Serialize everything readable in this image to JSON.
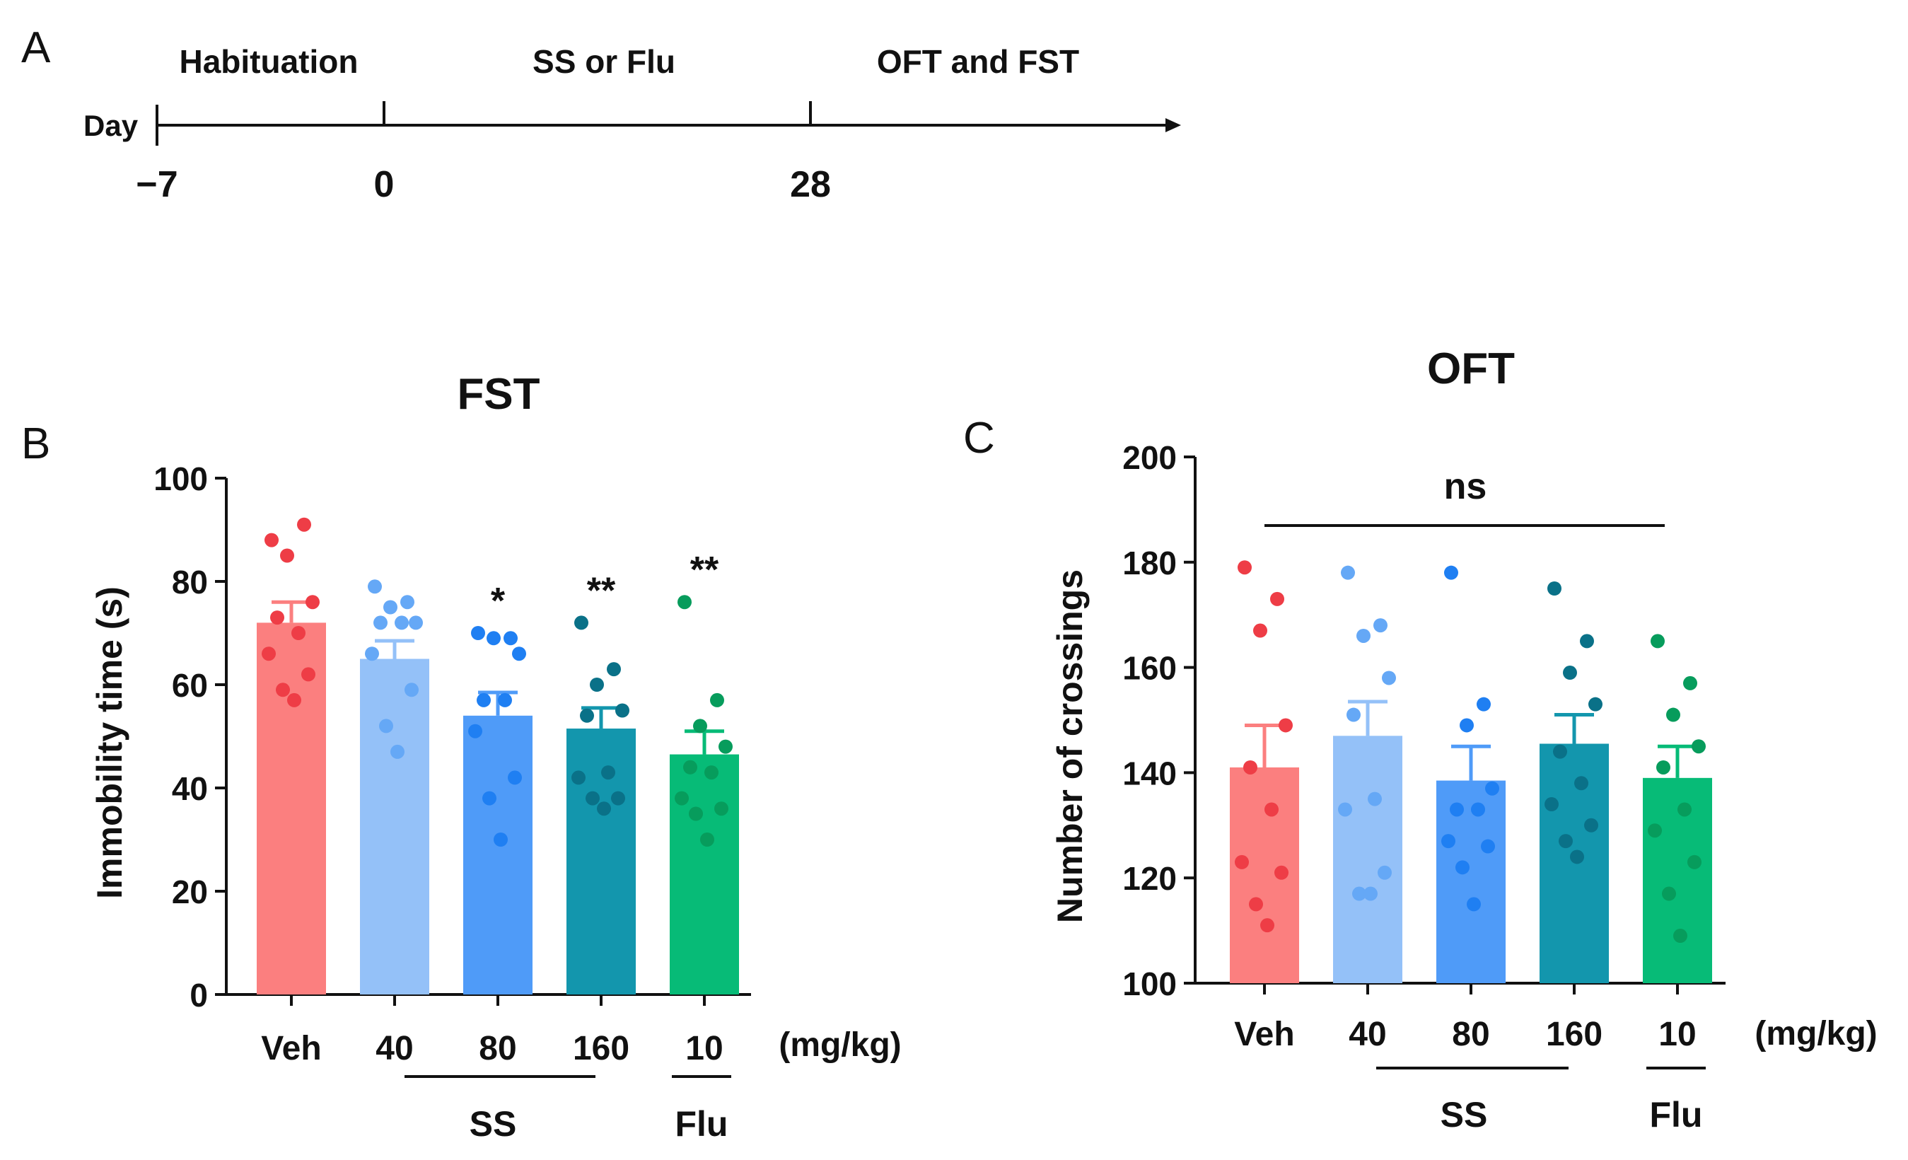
{
  "panel_labels": {
    "a": "A",
    "b": "B",
    "c": "C"
  },
  "timeline": {
    "day_label": "Day",
    "ticks": [
      "−7",
      "0",
      "28"
    ],
    "phases": [
      "Habituation",
      "SS or Flu",
      "OFT and FST"
    ]
  },
  "colors": {
    "veh": "#fb7f7f",
    "ss40": "#94c1f8",
    "ss80": "#4f9bf8",
    "ss160": "#1396ad",
    "flu": "#07bb77",
    "veh_dot": "#ee3d46",
    "ss40_dot": "#65a8f6",
    "ss80_dot": "#1f7ff2",
    "ss160_dot": "#0a7188",
    "flu_dot": "#079c5c",
    "axis": "#111111"
  },
  "chart_data": [
    {
      "type": "bar",
      "title": "FST",
      "xlabel": "",
      "ylabel": "Immobility time (s)",
      "ylim": [
        0,
        100
      ],
      "yticks": [
        0,
        20,
        40,
        60,
        80,
        100
      ],
      "categories": [
        "Veh",
        "40",
        "80",
        "160",
        "10"
      ],
      "unit_label": "(mg/kg)",
      "group_labels": [
        {
          "label": "SS",
          "categories": [
            "40",
            "80",
            "160"
          ]
        },
        {
          "label": "Flu",
          "categories": [
            "10"
          ]
        }
      ],
      "means": [
        72,
        65,
        54,
        51.5,
        46.5
      ],
      "sem": [
        4,
        3.5,
        4.5,
        4,
        4.5
      ],
      "significance": [
        "",
        "",
        "*",
        "**",
        "**"
      ],
      "points": [
        [
          88,
          91,
          85,
          76,
          73,
          70,
          66,
          62,
          59,
          57
        ],
        [
          79,
          76,
          75,
          72,
          72,
          72,
          66,
          59,
          52,
          47
        ],
        [
          70,
          69,
          69,
          66,
          57,
          57,
          51,
          42,
          38,
          30
        ],
        [
          72,
          63,
          60,
          55,
          54,
          43,
          42,
          38,
          38,
          36
        ],
        [
          76,
          57,
          52,
          48,
          44,
          43,
          38,
          36,
          35,
          30
        ]
      ]
    },
    {
      "type": "bar",
      "title": "OFT",
      "xlabel": "",
      "ylabel": "Number of crossings",
      "ylim": [
        100,
        200
      ],
      "yticks": [
        100,
        120,
        140,
        160,
        180,
        200
      ],
      "categories": [
        "Veh",
        "40",
        "80",
        "160",
        "10"
      ],
      "unit_label": "(mg/kg)",
      "group_labels": [
        {
          "label": "SS",
          "categories": [
            "40",
            "80",
            "160"
          ]
        },
        {
          "label": "Flu",
          "categories": [
            "10"
          ]
        }
      ],
      "means": [
        141,
        147,
        138.5,
        145.5,
        139
      ],
      "sem": [
        8,
        6.5,
        6.5,
        5.5,
        6
      ],
      "significance_bracket": "ns",
      "points": [
        [
          179,
          173,
          167,
          149,
          141,
          133,
          123,
          121,
          115,
          111
        ],
        [
          178,
          168,
          166,
          158,
          151,
          135,
          133,
          121,
          117,
          117
        ],
        [
          178,
          153,
          149,
          137,
          133,
          133,
          127,
          126,
          122,
          115
        ],
        [
          175,
          165,
          159,
          153,
          144,
          138,
          134,
          130,
          127,
          124
        ],
        [
          165,
          157,
          151,
          145,
          141,
          133,
          129,
          123,
          117,
          109
        ]
      ]
    }
  ]
}
